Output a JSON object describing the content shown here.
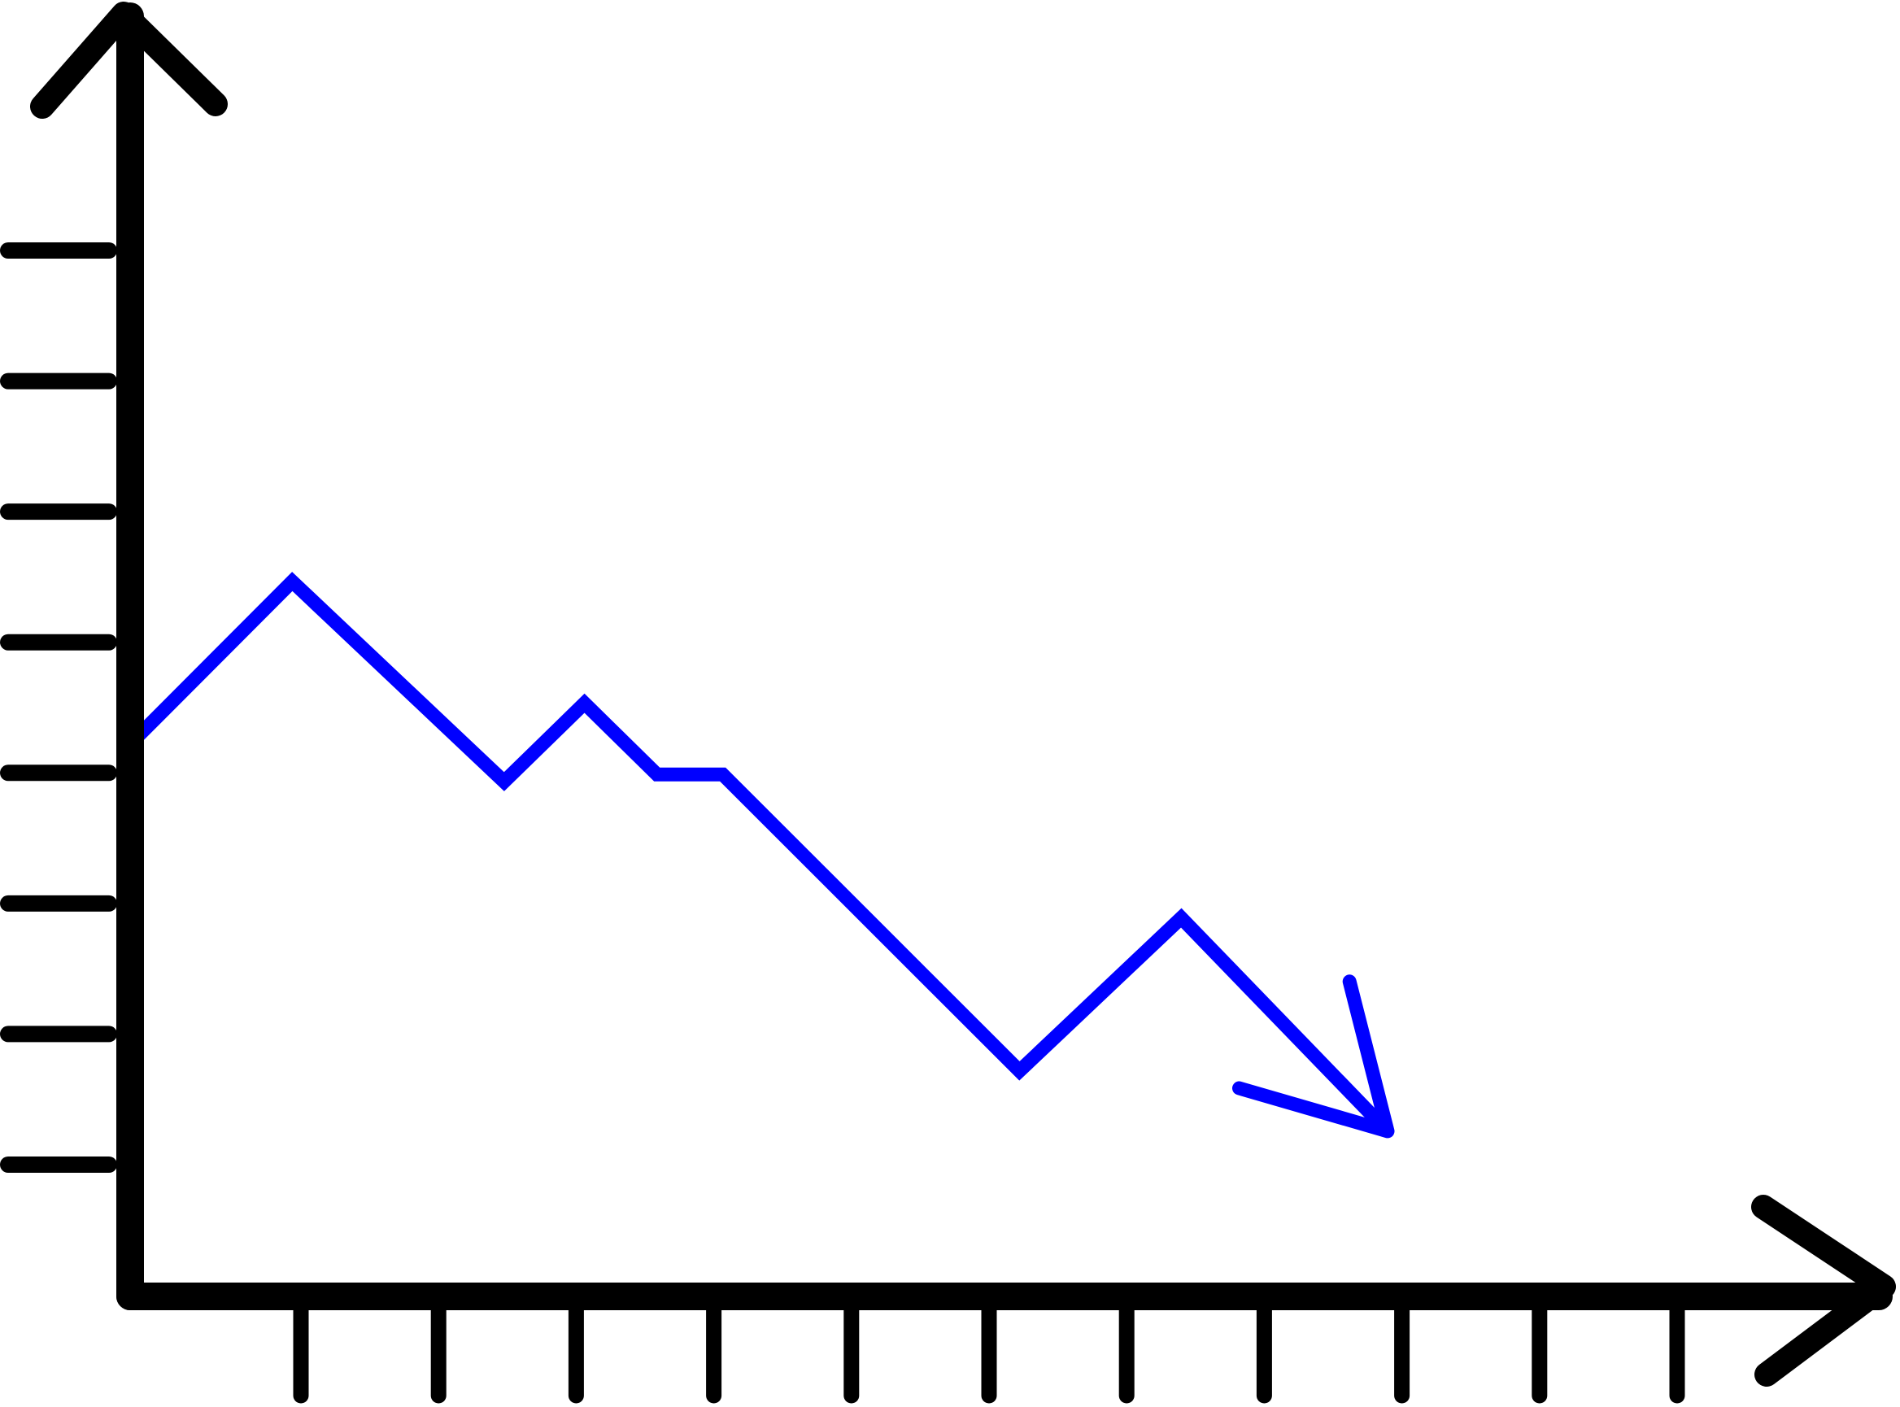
{
  "chart_data": {
    "type": "line",
    "title": "",
    "xlabel": "",
    "ylabel": "",
    "grid": false,
    "legend": "none",
    "axis_color": "#000000",
    "line_color": "#0000ff",
    "x_tick_count": 11,
    "y_tick_count": 8,
    "xlim": [
      0,
      14
    ],
    "ylim": [
      0,
      9
    ],
    "series": [
      {
        "values": [
          {
            "x": 0.0,
            "y": 4.65
          },
          {
            "x": 1.38,
            "y": 5.93
          },
          {
            "x": 3.28,
            "y": 4.27
          },
          {
            "x": 4.0,
            "y": 4.92
          },
          {
            "x": 4.65,
            "y": 4.33
          },
          {
            "x": 5.24,
            "y": 4.33
          },
          {
            "x": 7.9,
            "y": 1.87
          },
          {
            "x": 9.35,
            "y": 3.14
          },
          {
            "x": 11.2,
            "y": 1.37
          }
        ],
        "end_marker": "arrow"
      }
    ]
  }
}
